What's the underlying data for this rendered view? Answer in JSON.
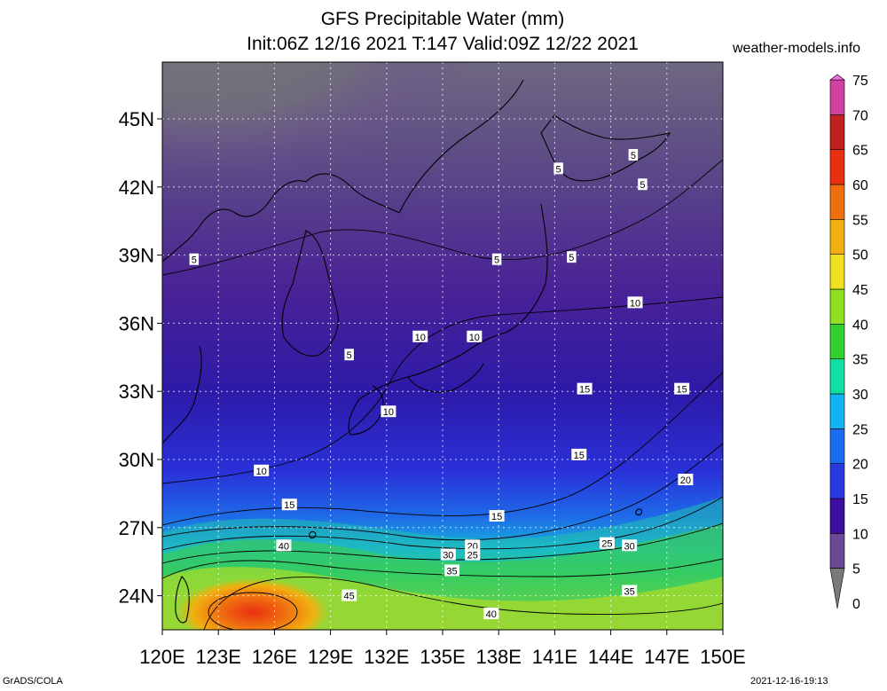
{
  "title_line1": "GFS Precipitable Water (mm)",
  "title_line2": "Init:06Z 12/16 2021 T:147 Valid:09Z 12/22 2021",
  "site_label": "weather-models.info",
  "footer_left": "GrADS/COLA",
  "footer_right": "2021-12-16-19:13",
  "chart_data": {
    "type": "heatmap",
    "title": "GFS Precipitable Water (mm)",
    "subtitle": "Init:06Z 12/16 2021 T:147 Valid:09Z 12/22 2021",
    "units": "mm",
    "x_range": [
      120,
      150
    ],
    "y_range": [
      22.5,
      47.5
    ],
    "x_ticks": [
      "120E",
      "123E",
      "126E",
      "129E",
      "132E",
      "135E",
      "138E",
      "141E",
      "144E",
      "147E",
      "150E"
    ],
    "x_tick_values": [
      120,
      123,
      126,
      129,
      132,
      135,
      138,
      141,
      144,
      147,
      150
    ],
    "y_ticks": [
      "24N",
      "27N",
      "30N",
      "33N",
      "36N",
      "39N",
      "42N",
      "45N"
    ],
    "y_tick_values": [
      24,
      27,
      30,
      33,
      36,
      39,
      42,
      45
    ],
    "grid": true,
    "colorbar": {
      "levels": [
        0,
        5,
        10,
        15,
        20,
        25,
        30,
        35,
        40,
        45,
        50,
        55,
        60,
        65,
        70,
        75
      ],
      "colors": [
        "#7a7a7a",
        "#6a4a94",
        "#3d0fa0",
        "#2a3ae0",
        "#1a6cf0",
        "#10b4f0",
        "#10e0a0",
        "#30d030",
        "#90e020",
        "#f0e020",
        "#f0b010",
        "#f07010",
        "#e83010",
        "#c02020",
        "#d040a0",
        "#f070e0"
      ],
      "placement": "right"
    },
    "contour_labels": [
      {
        "lon": 121.7,
        "lat": 38.8,
        "value": "5"
      },
      {
        "lon": 130.0,
        "lat": 34.6,
        "value": "5"
      },
      {
        "lon": 137.9,
        "lat": 38.8,
        "value": "5"
      },
      {
        "lon": 141.2,
        "lat": 42.8,
        "value": "5"
      },
      {
        "lon": 145.2,
        "lat": 43.4,
        "value": "5"
      },
      {
        "lon": 145.7,
        "lat": 42.1,
        "value": "5"
      },
      {
        "lon": 141.9,
        "lat": 38.9,
        "value": "5"
      },
      {
        "lon": 145.3,
        "lat": 36.9,
        "value": "10"
      },
      {
        "lon": 133.8,
        "lat": 35.4,
        "value": "10"
      },
      {
        "lon": 136.7,
        "lat": 35.4,
        "value": "10"
      },
      {
        "lon": 132.1,
        "lat": 32.1,
        "value": "10"
      },
      {
        "lon": 125.3,
        "lat": 29.5,
        "value": "10"
      },
      {
        "lon": 126.8,
        "lat": 28.0,
        "value": "15"
      },
      {
        "lon": 137.9,
        "lat": 27.5,
        "value": "15"
      },
      {
        "lon": 142.3,
        "lat": 30.2,
        "value": "15"
      },
      {
        "lon": 142.6,
        "lat": 33.1,
        "value": "15"
      },
      {
        "lon": 147.8,
        "lat": 33.1,
        "value": "15"
      },
      {
        "lon": 148.0,
        "lat": 29.1,
        "value": "20"
      },
      {
        "lon": 136.6,
        "lat": 26.2,
        "value": "20"
      },
      {
        "lon": 136.6,
        "lat": 25.8,
        "value": "25"
      },
      {
        "lon": 135.3,
        "lat": 25.8,
        "value": "30"
      },
      {
        "lon": 143.8,
        "lat": 26.3,
        "value": "25"
      },
      {
        "lon": 145.0,
        "lat": 26.2,
        "value": "30"
      },
      {
        "lon": 126.5,
        "lat": 26.2,
        "value": "40"
      },
      {
        "lon": 135.5,
        "lat": 25.1,
        "value": "35"
      },
      {
        "lon": 145.0,
        "lat": 24.2,
        "value": "35"
      },
      {
        "lon": 130.0,
        "lat": 24.0,
        "value": "45"
      },
      {
        "lon": 137.6,
        "lat": 23.2,
        "value": "40"
      }
    ]
  }
}
